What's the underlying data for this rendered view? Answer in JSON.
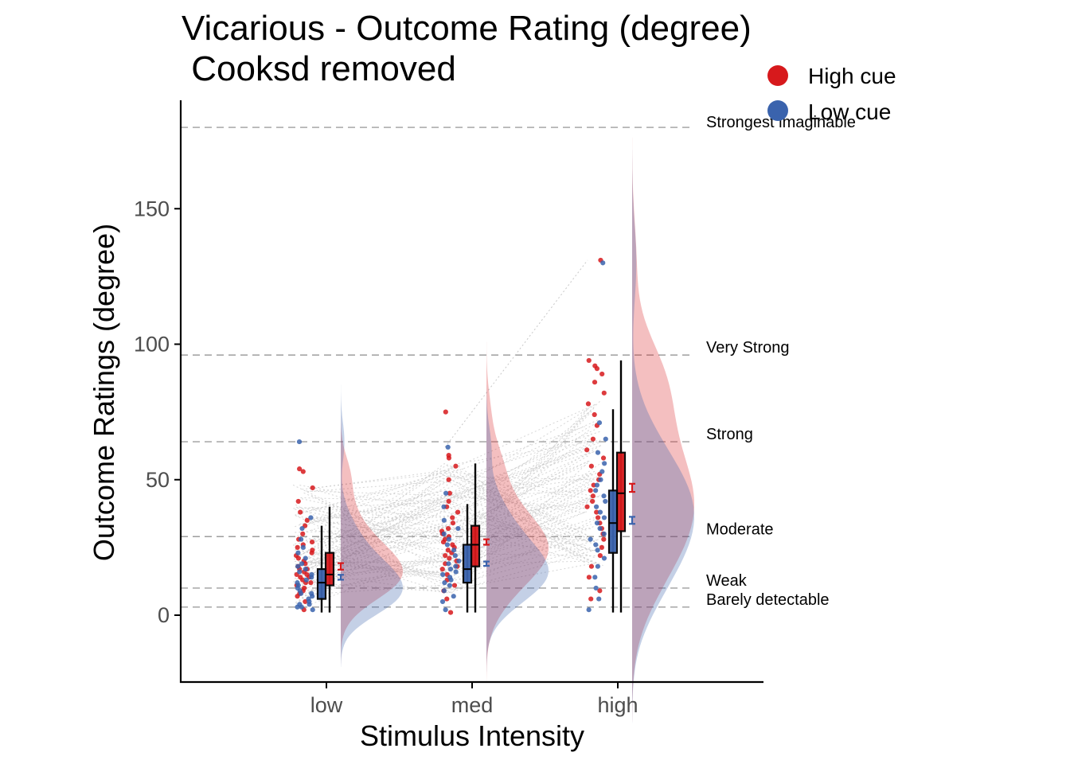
{
  "chart_data": {
    "type": "raincloud",
    "title_line1": "Vicarious - Outcome Rating (degree)",
    "title_line2": " Cooksd removed",
    "xlabel": "Stimulus Intensity",
    "ylabel": "Outcome Ratings (degree)",
    "ylim": [
      -25,
      188
    ],
    "yticks": [
      0,
      50,
      100,
      150
    ],
    "ytick_labels": [
      "0",
      "50",
      "100",
      "150"
    ],
    "categories": [
      "low",
      "med",
      "high"
    ],
    "legend_position": "top-right",
    "series": [
      {
        "name": "High cue",
        "color": "#d7191c",
        "box": [
          {
            "q1": 11,
            "median": 15,
            "q3": 23,
            "wmin": 1,
            "wmax": 40
          },
          {
            "q1": 18,
            "median": 26,
            "q3": 33,
            "wmin": 1,
            "wmax": 56
          },
          {
            "q1": 31,
            "median": 45,
            "q3": 60,
            "wmin": 1,
            "wmax": 94
          }
        ],
        "mean": [
          18,
          27,
          47
        ],
        "mean_se": [
          1.2,
          1.0,
          1.5
        ],
        "points": [
          [
            2,
            5,
            7,
            8,
            9,
            10,
            11,
            12,
            12,
            13,
            14,
            14,
            15,
            15,
            16,
            17,
            17,
            18,
            19,
            20,
            21,
            22,
            23,
            24,
            25,
            26,
            27,
            28,
            30,
            33,
            35,
            38,
            42,
            47,
            53,
            54
          ],
          [
            1,
            6,
            9,
            11,
            13,
            15,
            17,
            18,
            19,
            20,
            21,
            22,
            23,
            24,
            25,
            26,
            27,
            28,
            29,
            30,
            31,
            32,
            34,
            36,
            38,
            40,
            42,
            45,
            50,
            55,
            58,
            59,
            75
          ],
          [
            6,
            9,
            14,
            18,
            22,
            25,
            28,
            30,
            32,
            34,
            36,
            38,
            40,
            42,
            44,
            46,
            48,
            50,
            52,
            55,
            58,
            61,
            65,
            70,
            74,
            78,
            82,
            86,
            89,
            91,
            92,
            94,
            131
          ]
        ]
      },
      {
        "name": "Low cue",
        "color": "#3a63ad",
        "box": [
          {
            "q1": 6,
            "median": 12,
            "q3": 17,
            "wmin": 1,
            "wmax": 33
          },
          {
            "q1": 12,
            "median": 17,
            "q3": 26,
            "wmin": 1,
            "wmax": 41
          },
          {
            "q1": 23,
            "median": 34,
            "q3": 46,
            "wmin": 1,
            "wmax": 76
          }
        ],
        "mean": [
          14,
          19,
          35
        ],
        "mean_se": [
          0.9,
          0.8,
          1.3
        ],
        "points": [
          [
            2,
            3,
            3,
            4,
            4,
            5,
            6,
            7,
            8,
            8,
            9,
            10,
            11,
            12,
            13,
            14,
            15,
            16,
            17,
            18,
            19,
            21,
            23,
            25,
            28,
            32,
            36,
            64
          ],
          [
            2,
            5,
            7,
            9,
            11,
            12,
            13,
            14,
            15,
            16,
            17,
            18,
            19,
            20,
            22,
            24,
            26,
            28,
            30,
            32,
            35,
            40,
            45,
            62
          ],
          [
            2,
            6,
            10,
            14,
            18,
            21,
            24,
            26,
            28,
            30,
            32,
            34,
            36,
            38,
            40,
            42,
            44,
            46,
            48,
            50,
            53,
            56,
            60,
            65,
            71,
            130
          ]
        ]
      }
    ],
    "reference_lines": [
      {
        "value": 180,
        "label": "Strongest imaginable"
      },
      {
        "value": 96,
        "label": "Very Strong"
      },
      {
        "value": 64,
        "label": "Strong"
      },
      {
        "value": 29,
        "label": "Moderate"
      },
      {
        "value": 10,
        "label": "Weak"
      },
      {
        "value": 3,
        "label": "Barely detectable"
      }
    ],
    "reference_line_color": "#9e9e9e"
  }
}
